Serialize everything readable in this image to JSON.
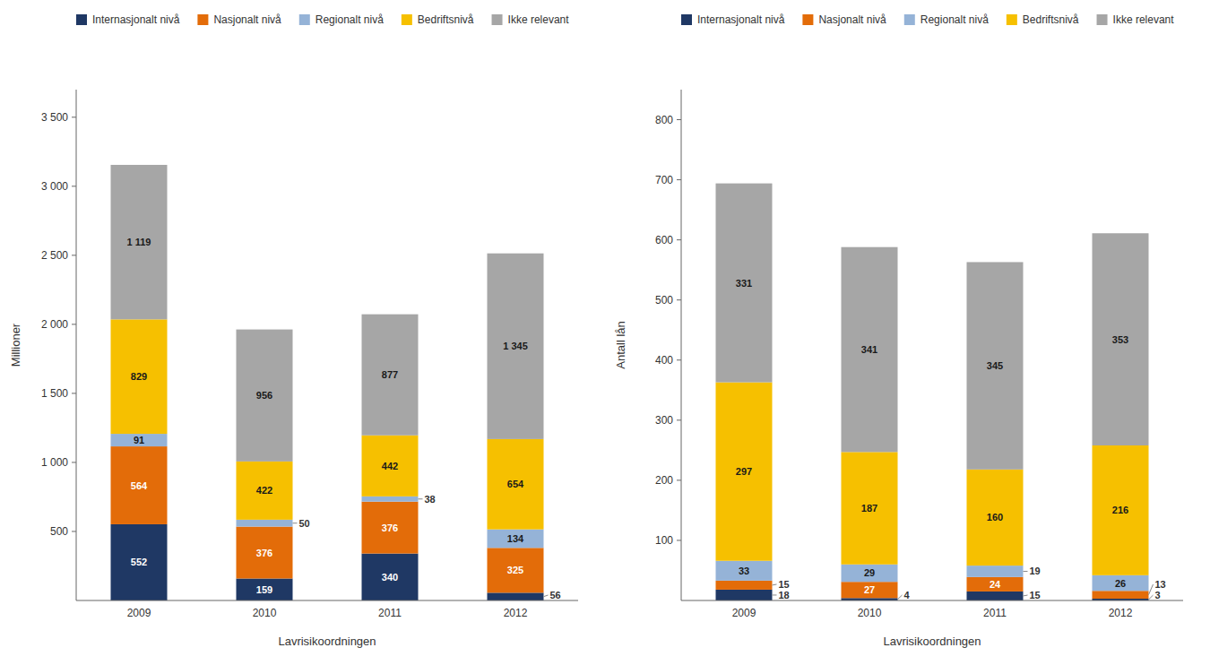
{
  "chart_data": [
    {
      "type": "bar",
      "stacked": true,
      "data_labels": true,
      "grid": false,
      "legend": "top",
      "xlabel": "Lavrisikoordningen",
      "ylabel": "Millioner",
      "categories": [
        "2009",
        "2010",
        "2011",
        "2012"
      ],
      "series": [
        {
          "name": "Internasjonalt nivå",
          "color": "#1F3864",
          "values": [
            552,
            159,
            340,
            56
          ]
        },
        {
          "name": "Nasjonalt nivå",
          "color": "#E36C09",
          "values": [
            564,
            376,
            376,
            325
          ]
        },
        {
          "name": "Regionalt nivå",
          "color": "#95B3D7",
          "values": [
            91,
            50,
            38,
            134
          ]
        },
        {
          "name": "Bedriftsnivå",
          "color": "#F6C000",
          "values": [
            829,
            422,
            442,
            654
          ]
        },
        {
          "name": "Ikke relevant",
          "color": "#A6A6A6",
          "values": [
            1119,
            956,
            877,
            1345
          ],
          "value_labels": [
            "1 119",
            "956",
            "877",
            "1 345"
          ]
        }
      ],
      "ylim": [
        0,
        3700
      ],
      "yticks": [
        500,
        {
          "value": 1000,
          "label": "1 000"
        },
        {
          "value": 1500,
          "label": "1 500"
        },
        {
          "value": 2000,
          "label": "2 000"
        },
        {
          "value": 2500,
          "label": "2 500"
        },
        {
          "value": 3000,
          "label": "3 000"
        },
        {
          "value": 3500,
          "label": "3 500"
        }
      ]
    },
    {
      "type": "bar",
      "stacked": true,
      "data_labels": true,
      "grid": false,
      "legend": "top",
      "xlabel": "Lavrisikoordningen",
      "ylabel": "Antall lån",
      "categories": [
        "2009",
        "2010",
        "2011",
        "2012"
      ],
      "series": [
        {
          "name": "Internasjonalt nivå",
          "color": "#1F3864",
          "values": [
            18,
            4,
            15,
            3
          ]
        },
        {
          "name": "Nasjonalt nivå",
          "color": "#E36C09",
          "values": [
            15,
            27,
            24,
            13
          ]
        },
        {
          "name": "Regionalt nivå",
          "color": "#95B3D7",
          "values": [
            33,
            29,
            19,
            26
          ]
        },
        {
          "name": "Bedriftsnivå",
          "color": "#F6C000",
          "values": [
            297,
            187,
            160,
            216
          ]
        },
        {
          "name": "Ikke relevant",
          "color": "#A6A6A6",
          "values": [
            331,
            341,
            345,
            353
          ]
        }
      ],
      "ylim": [
        0,
        850
      ],
      "yticks": [
        100,
        200,
        300,
        400,
        500,
        600,
        700,
        800
      ]
    }
  ]
}
